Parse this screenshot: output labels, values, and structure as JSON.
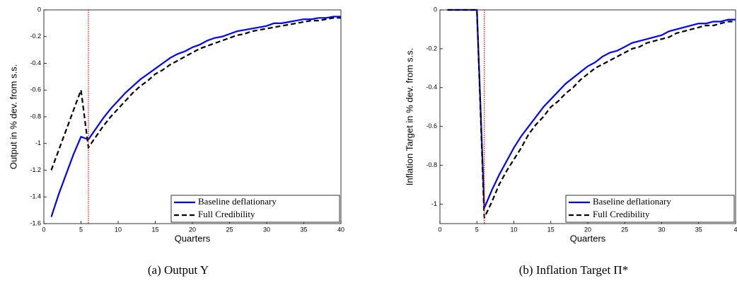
{
  "chart_data": [
    {
      "type": "line",
      "caption": "(a) Output Y",
      "xlabel": "Quarters",
      "ylabel": "Output in % dev. from s.s.",
      "x": [
        1,
        2,
        3,
        4,
        5,
        6,
        7,
        8,
        9,
        10,
        11,
        12,
        13,
        14,
        15,
        16,
        17,
        18,
        19,
        20,
        21,
        22,
        23,
        24,
        25,
        26,
        27,
        28,
        29,
        30,
        31,
        32,
        33,
        34,
        35,
        36,
        37,
        38,
        39,
        40
      ],
      "series": [
        {
          "name": "Baseline deflationary",
          "color": "#0000ff",
          "dash": "solid",
          "values": [
            -1.55,
            -1.38,
            -1.23,
            -1.08,
            -0.95,
            -0.97,
            -0.89,
            -0.81,
            -0.74,
            -0.68,
            -0.62,
            -0.57,
            -0.52,
            -0.48,
            -0.44,
            -0.4,
            -0.36,
            -0.33,
            -0.31,
            -0.28,
            -0.26,
            -0.23,
            -0.21,
            -0.2,
            -0.18,
            -0.16,
            -0.15,
            -0.14,
            -0.13,
            -0.12,
            -0.1,
            -0.1,
            -0.09,
            -0.08,
            -0.07,
            -0.07,
            -0.06,
            -0.06,
            -0.05,
            -0.05
          ]
        },
        {
          "name": "Full Credibility",
          "color": "#000000",
          "dash": "dashed",
          "values": [
            -1.2,
            -1.05,
            -0.9,
            -0.75,
            -0.6,
            -1.03,
            -0.95,
            -0.87,
            -0.8,
            -0.74,
            -0.68,
            -0.62,
            -0.57,
            -0.53,
            -0.48,
            -0.45,
            -0.41,
            -0.38,
            -0.35,
            -0.32,
            -0.29,
            -0.27,
            -0.25,
            -0.23,
            -0.21,
            -0.19,
            -0.18,
            -0.16,
            -0.15,
            -0.14,
            -0.13,
            -0.12,
            -0.11,
            -0.1,
            -0.09,
            -0.08,
            -0.08,
            -0.07,
            -0.06,
            -0.06
          ]
        }
      ],
      "vline": 6,
      "vline_color": "#ff0000",
      "xlim": [
        0,
        40
      ],
      "xticks": [
        0,
        5,
        10,
        15,
        20,
        25,
        30,
        35,
        40
      ],
      "ylim": [
        -1.6,
        0
      ],
      "yticks": [
        -1.6,
        -1.4,
        -1.2,
        -1,
        -0.8,
        -0.6,
        -0.4,
        -0.2,
        0
      ],
      "grid": false,
      "legend": "lower right"
    },
    {
      "type": "line",
      "caption": "(b) Inflation Target Π*",
      "xlabel": "Quarters",
      "ylabel": "Inflation Target in % dev. from s.s.",
      "x": [
        1,
        2,
        3,
        4,
        5,
        6,
        7,
        8,
        9,
        10,
        11,
        12,
        13,
        14,
        15,
        16,
        17,
        18,
        19,
        20,
        21,
        22,
        23,
        24,
        25,
        26,
        27,
        28,
        29,
        30,
        31,
        32,
        33,
        34,
        35,
        36,
        37,
        38,
        39,
        40
      ],
      "series": [
        {
          "name": "Baseline deflationary",
          "color": "#0000ff",
          "dash": "solid",
          "values": [
            0,
            0,
            0,
            0,
            0,
            -1.02,
            -0.93,
            -0.85,
            -0.78,
            -0.71,
            -0.65,
            -0.6,
            -0.55,
            -0.5,
            -0.46,
            -0.42,
            -0.38,
            -0.35,
            -0.32,
            -0.29,
            -0.27,
            -0.24,
            -0.22,
            -0.21,
            -0.19,
            -0.17,
            -0.16,
            -0.15,
            -0.14,
            -0.13,
            -0.11,
            -0.1,
            -0.09,
            -0.08,
            -0.07,
            -0.07,
            -0.06,
            -0.06,
            -0.05,
            -0.05
          ]
        },
        {
          "name": "Full Credibility",
          "color": "#000000",
          "dash": "dashed",
          "values": [
            0,
            0,
            0,
            0,
            0,
            -1.07,
            -0.99,
            -0.9,
            -0.83,
            -0.77,
            -0.71,
            -0.64,
            -0.59,
            -0.55,
            -0.5,
            -0.47,
            -0.43,
            -0.4,
            -0.36,
            -0.33,
            -0.3,
            -0.28,
            -0.26,
            -0.24,
            -0.22,
            -0.2,
            -0.19,
            -0.17,
            -0.16,
            -0.15,
            -0.14,
            -0.12,
            -0.11,
            -0.1,
            -0.09,
            -0.08,
            -0.08,
            -0.07,
            -0.06,
            -0.06
          ]
        }
      ],
      "vline": 6,
      "vline_color": "#ff0000",
      "xlim": [
        0,
        40
      ],
      "xticks": [
        0,
        5,
        10,
        15,
        20,
        25,
        30,
        35,
        {
          "value": 40,
          "label": "4"
        }
      ],
      "ylim": [
        -1.1,
        0
      ],
      "yticks": [
        -1,
        -0.8,
        -0.6,
        -0.4,
        -0.2,
        0
      ],
      "grid": false,
      "legend": "lower right"
    }
  ]
}
